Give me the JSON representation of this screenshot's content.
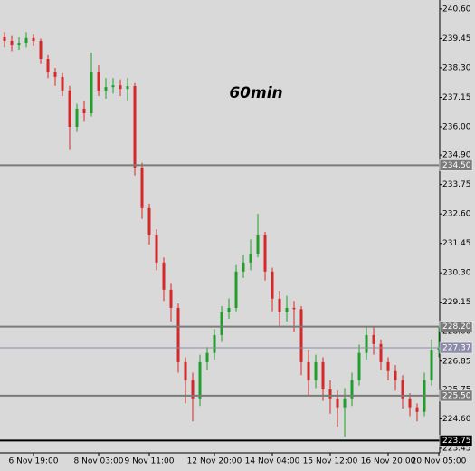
{
  "chart_data": {
    "type": "candlestick",
    "title": "60min",
    "categories": [
      null,
      null,
      null,
      null,
      "6 Nov 19:00",
      null,
      null,
      null,
      null,
      null,
      null,
      null,
      null,
      "8 Nov 03:00",
      null,
      null,
      null,
      null,
      null,
      null,
      "9 Nov 11:00",
      null,
      null,
      null,
      null,
      null,
      null,
      null,
      null,
      "12 Nov 20:00",
      null,
      null,
      null,
      null,
      null,
      null,
      null,
      "14 Nov 04:00",
      null,
      null,
      null,
      null,
      null,
      null,
      null,
      "15 Nov 12:00",
      null,
      null,
      null,
      null,
      null,
      null,
      null,
      "16 Nov 20:00",
      null,
      null,
      null,
      null,
      null,
      null,
      "20 Nov 05:00"
    ],
    "open": [
      239.5,
      239.36,
      239.18,
      239.25,
      239.47,
      239.36,
      238.65,
      238.12,
      237.95,
      237.42,
      236.0,
      236.71,
      236.53,
      238.12,
      237.42,
      237.55,
      237.62,
      237.48,
      237.59,
      234.41,
      232.82,
      231.76,
      230.7,
      229.64,
      228.93,
      226.81,
      226.11,
      225.4,
      226.81,
      227.17,
      227.87,
      228.76,
      228.93,
      230.35,
      230.7,
      231.05,
      231.76,
      230.35,
      229.29,
      228.76,
      228.93,
      228.88,
      226.81,
      226.11,
      226.81,
      225.75,
      225.4,
      225.05,
      225.4,
      226.11,
      227.17,
      227.87,
      227.52,
      226.81,
      226.46,
      226.11,
      225.4,
      225.05,
      224.87,
      226.11,
      227.3
    ],
    "high": [
      239.7,
      239.55,
      239.5,
      239.7,
      239.6,
      239.45,
      238.8,
      238.3,
      238.1,
      237.6,
      236.9,
      237.0,
      238.9,
      238.4,
      237.9,
      237.9,
      237.85,
      237.9,
      237.7,
      234.6,
      233.0,
      232.0,
      230.9,
      229.9,
      229.1,
      227.0,
      226.4,
      227.1,
      227.4,
      228.1,
      229.0,
      229.3,
      230.6,
      231.0,
      231.6,
      232.6,
      231.9,
      230.5,
      229.6,
      229.4,
      229.2,
      229.0,
      227.3,
      227.1,
      227.0,
      226.1,
      225.7,
      225.8,
      226.4,
      227.5,
      228.2,
      228.2,
      227.7,
      227.0,
      226.7,
      226.3,
      225.6,
      225.2,
      226.4,
      227.7,
      228.2
    ],
    "low": [
      239.1,
      238.95,
      239.0,
      239.1,
      239.15,
      238.45,
      237.9,
      237.6,
      237.2,
      235.1,
      235.8,
      236.2,
      236.4,
      237.2,
      237.1,
      237.3,
      237.2,
      237.0,
      234.1,
      232.4,
      231.4,
      230.4,
      229.2,
      228.4,
      226.4,
      225.2,
      224.5,
      225.1,
      226.5,
      226.9,
      227.6,
      228.5,
      228.8,
      230.1,
      230.4,
      230.9,
      230.0,
      228.8,
      228.2,
      228.4,
      228.0,
      226.3,
      225.5,
      225.8,
      225.3,
      224.8,
      224.3,
      223.9,
      225.1,
      225.9,
      226.9,
      227.1,
      226.5,
      226.1,
      225.7,
      225.0,
      224.7,
      224.5,
      224.7,
      225.9,
      227.0
    ],
    "close": [
      239.36,
      239.18,
      239.25,
      239.47,
      239.36,
      238.65,
      238.12,
      237.95,
      237.42,
      236.0,
      236.71,
      236.53,
      238.12,
      237.42,
      237.55,
      237.62,
      237.48,
      237.59,
      234.41,
      232.82,
      231.76,
      230.7,
      229.64,
      228.93,
      226.81,
      226.11,
      225.4,
      226.81,
      227.17,
      227.87,
      228.76,
      228.93,
      230.35,
      230.7,
      231.05,
      231.76,
      230.35,
      229.29,
      228.76,
      228.93,
      228.88,
      226.81,
      226.11,
      226.81,
      225.75,
      225.4,
      225.05,
      225.4,
      226.11,
      227.17,
      227.87,
      227.52,
      226.81,
      226.46,
      226.11,
      225.4,
      225.05,
      224.87,
      226.11,
      227.3,
      227.37
    ],
    "up_color": "#1f9e2c",
    "down_color": "#d62828",
    "ylim": [
      223.27,
      240.95
    ],
    "yticks": [
      {
        "value": 240.6,
        "label": "240.60"
      },
      {
        "value": 239.45,
        "label": "239.45"
      },
      {
        "value": 238.3,
        "label": "238.30"
      },
      {
        "value": 237.15,
        "label": "237.15"
      },
      {
        "value": 236.0,
        "label": "236.00"
      },
      {
        "value": 234.9,
        "label": "234.90"
      },
      {
        "value": 233.75,
        "label": "233.75"
      },
      {
        "value": 232.6,
        "label": "232.60"
      },
      {
        "value": 231.45,
        "label": "231.45"
      },
      {
        "value": 230.3,
        "label": "230.30"
      },
      {
        "value": 229.15,
        "label": "229.15"
      },
      {
        "value": 228.0,
        "label": "228.00"
      },
      {
        "value": 226.85,
        "label": "226.85"
      },
      {
        "value": 225.75,
        "label": "225.75"
      },
      {
        "value": 224.6,
        "label": "224.60"
      },
      {
        "value": 223.45,
        "label": "223.45"
      }
    ],
    "levels": [
      {
        "value": 234.5,
        "label": "234.50",
        "color": "#7a7a7a"
      },
      {
        "value": 228.2,
        "label": "228.20",
        "color": "#7a7a7a"
      },
      {
        "value": 227.37,
        "label": "227.37",
        "color": "#8c8ca8"
      },
      {
        "value": 225.5,
        "label": "225.50",
        "color": "#7a7a7a"
      },
      {
        "value": 223.75,
        "label": "223.75",
        "color": "#000000"
      }
    ]
  }
}
